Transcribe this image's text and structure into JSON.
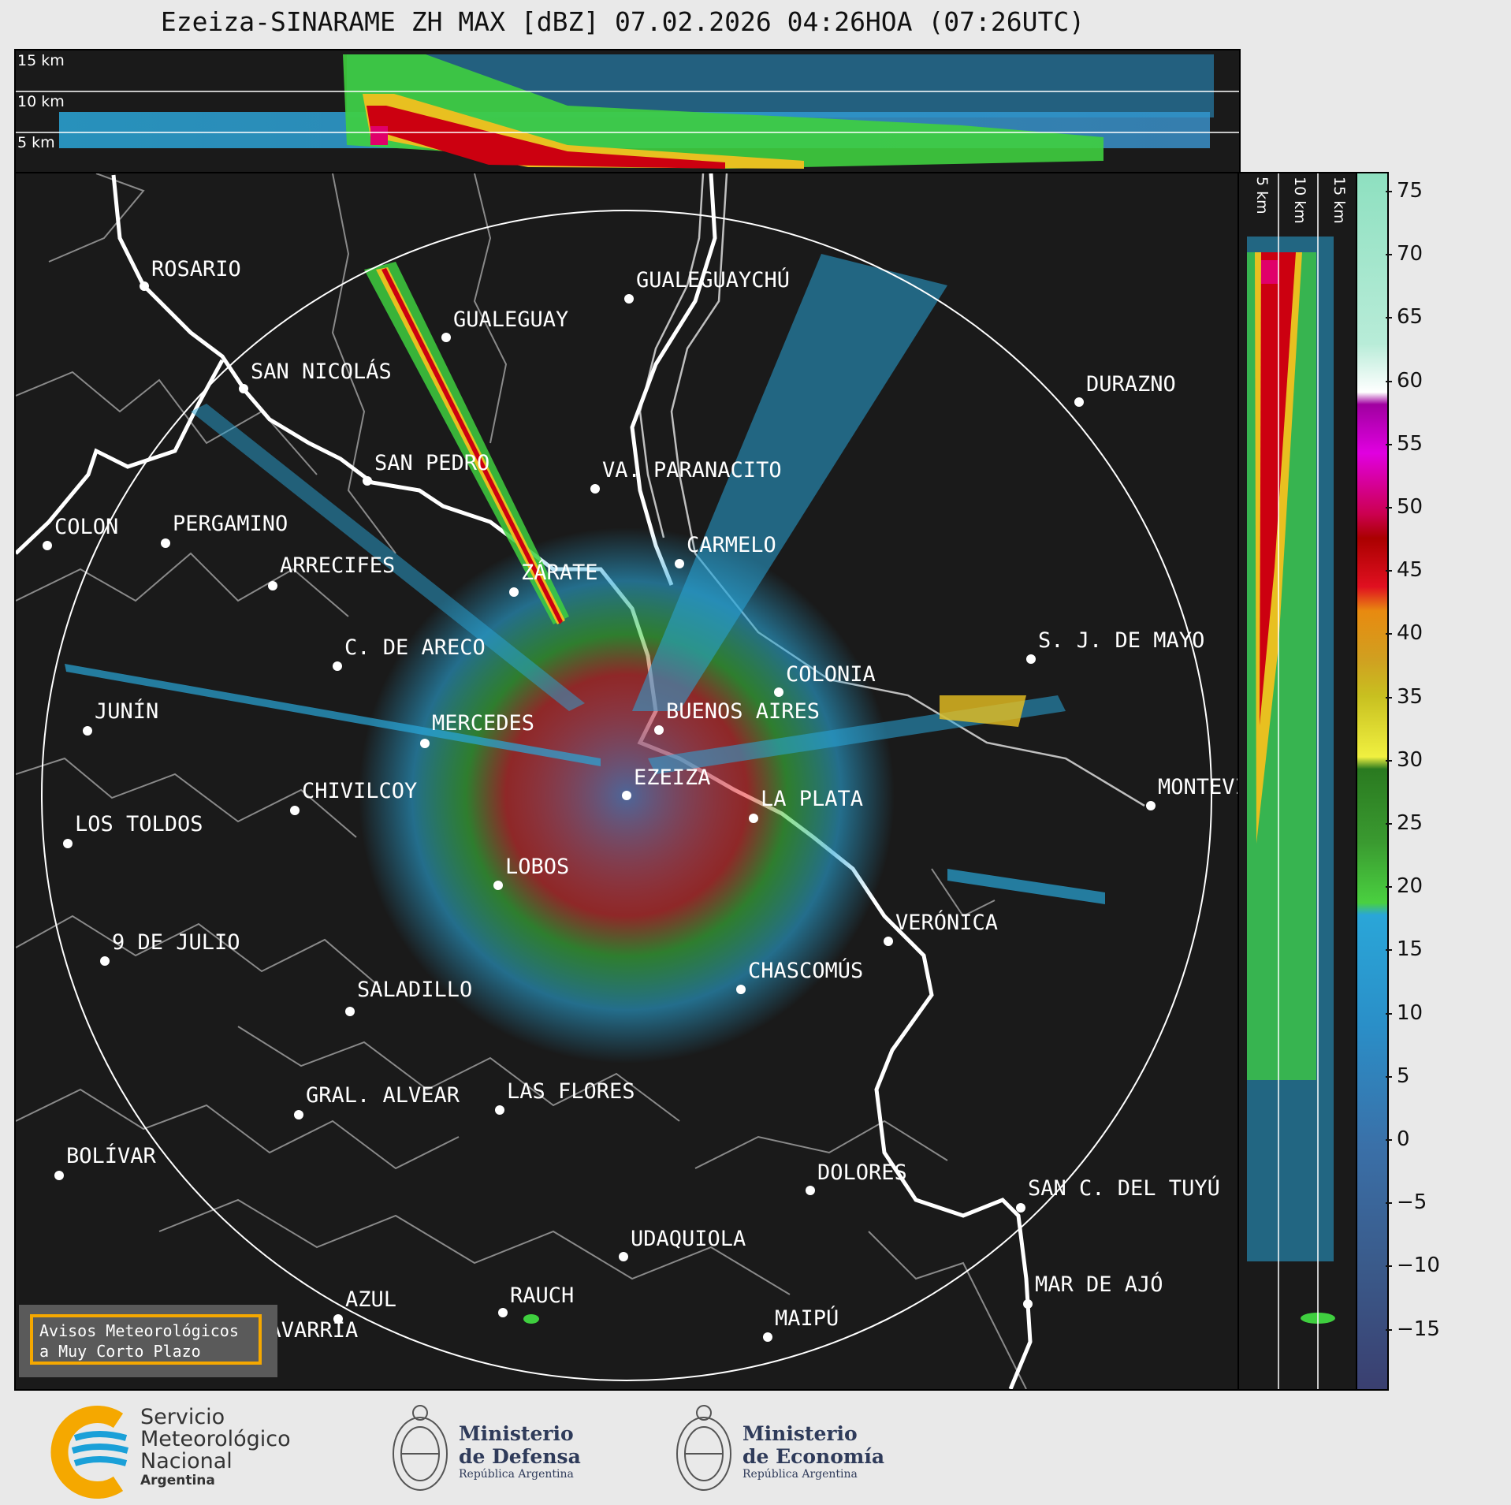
{
  "title": "Ezeiza-SINARAME ZH MAX [dBZ] 07.02.2026 04:26HOA (07:26UTC)",
  "top_altitudes": [
    "15 km",
    "10 km",
    "5 km"
  ],
  "right_altitudes": [
    "5 km",
    "10 km",
    "15 km"
  ],
  "colorbar": {
    "ticks": [
      "75",
      "70",
      "65",
      "60",
      "55",
      "50",
      "45",
      "40",
      "35",
      "30",
      "25",
      "20",
      "15",
      "10",
      "5",
      "0",
      "−5",
      "−10",
      "−15"
    ]
  },
  "cities": [
    {
      "name": "ROSARIO",
      "dot": [
        181,
        361
      ],
      "label": [
        190,
        342
      ]
    },
    {
      "name": "GUALEGUAYCHÚ",
      "dot": [
        796,
        377
      ],
      "label": [
        805,
        356
      ]
    },
    {
      "name": "GUALEGUAY",
      "dot": [
        564,
        426
      ],
      "label": [
        573,
        406
      ]
    },
    {
      "name": "SAN NICOLÁS",
      "dot": [
        307,
        491
      ],
      "label": [
        316,
        472
      ]
    },
    {
      "name": "DURAZNO",
      "dot": [
        1367,
        508
      ],
      "label": [
        1376,
        488
      ]
    },
    {
      "name": "SAN PEDRO",
      "dot": [
        464,
        608
      ],
      "label": [
        473,
        588
      ]
    },
    {
      "name": "VA. PARANACITO",
      "dot": [
        753,
        618
      ],
      "label": [
        762,
        597
      ]
    },
    {
      "name": "COLON",
      "dot": [
        58,
        690
      ],
      "label": [
        67,
        669
      ]
    },
    {
      "name": "PERGAMINO",
      "dot": [
        208,
        687
      ],
      "label": [
        217,
        665
      ]
    },
    {
      "name": "CARMELO",
      "dot": [
        860,
        713
      ],
      "label": [
        869,
        692
      ]
    },
    {
      "name": "ARRECIFES",
      "dot": [
        344,
        741
      ],
      "label": [
        353,
        718
      ]
    },
    {
      "name": "ZÁRATE",
      "dot": [
        650,
        749
      ],
      "label": [
        659,
        727
      ]
    },
    {
      "name": "S. J. DE MAYO",
      "dot": [
        1306,
        834
      ],
      "label": [
        1315,
        813
      ]
    },
    {
      "name": "C. DE ARECO",
      "dot": [
        426,
        843
      ],
      "label": [
        435,
        822
      ]
    },
    {
      "name": "COLONIA",
      "dot": [
        986,
        876
      ],
      "label": [
        995,
        856
      ]
    },
    {
      "name": "BUENOS AIRES",
      "dot": [
        834,
        924
      ],
      "label": [
        843,
        903
      ]
    },
    {
      "name": "JUNÍN",
      "dot": [
        109,
        925
      ],
      "label": [
        118,
        903
      ]
    },
    {
      "name": "MERCEDES",
      "dot": [
        537,
        941
      ],
      "label": [
        546,
        918
      ]
    },
    {
      "name": "EZEIZA",
      "dot": [
        793,
        1007
      ],
      "label": [
        802,
        987
      ]
    },
    {
      "name": "CHIVILCOY",
      "dot": [
        372,
        1026
      ],
      "label": [
        381,
        1004
      ]
    },
    {
      "name": "LA PLATA",
      "dot": [
        954,
        1036
      ],
      "label": [
        963,
        1014
      ]
    },
    {
      "name": "MONTEVIDEO",
      "dot": [
        1458,
        1020
      ],
      "label": [
        1467,
        999
      ]
    },
    {
      "name": "LOS TOLDOS",
      "dot": [
        84,
        1068
      ],
      "label": [
        93,
        1046
      ]
    },
    {
      "name": "LOBOS",
      "dot": [
        630,
        1121
      ],
      "label": [
        639,
        1100
      ]
    },
    {
      "name": "VERÓNICA",
      "dot": [
        1125,
        1192
      ],
      "label": [
        1134,
        1171
      ]
    },
    {
      "name": "9 DE JULIO",
      "dot": [
        131,
        1217
      ],
      "label": [
        140,
        1196
      ]
    },
    {
      "name": "CHASCOMÚS",
      "dot": [
        938,
        1253
      ],
      "label": [
        947,
        1232
      ]
    },
    {
      "name": "SALADILLO",
      "dot": [
        442,
        1281
      ],
      "label": [
        451,
        1256
      ]
    },
    {
      "name": "GRAL. ALVEAR",
      "dot": [
        377,
        1412
      ],
      "label": [
        386,
        1390
      ]
    },
    {
      "name": "LAS FLORES",
      "dot": [
        632,
        1406
      ],
      "label": [
        641,
        1385
      ]
    },
    {
      "name": "BOLÍVAR",
      "dot": [
        73,
        1489
      ],
      "label": [
        82,
        1467
      ]
    },
    {
      "name": "DOLORES",
      "dot": [
        1026,
        1508
      ],
      "label": [
        1035,
        1488
      ]
    },
    {
      "name": "SAN C. DEL TUYÚ",
      "dot": [
        1293,
        1530
      ],
      "label": [
        1302,
        1508
      ]
    },
    {
      "name": "UDAQUIOLA",
      "dot": [
        789,
        1592
      ],
      "label": [
        798,
        1572
      ]
    },
    {
      "name": "MAR DE AJÓ",
      "dot": [
        1302,
        1652
      ],
      "label": [
        1311,
        1630
      ]
    },
    {
      "name": "AZUL",
      "dot": [
        427,
        1671
      ],
      "label": [
        436,
        1649
      ]
    },
    {
      "name": "RAUCH",
      "dot": [
        636,
        1663
      ],
      "label": [
        645,
        1644
      ]
    },
    {
      "name": "MAIPÚ",
      "dot": [
        972,
        1694
      ],
      "label": [
        981,
        1673
      ]
    },
    {
      "name": "OLAVARRÍA",
      "dot": [
        297,
        1710
      ],
      "label": [
        306,
        1688
      ]
    }
  ],
  "avisos": {
    "line1": "Avisos Meteorológicos",
    "line2": "a Muy Corto Plazo"
  },
  "logos": {
    "smn": {
      "line1": "Servicio",
      "line2": "Meteorológico",
      "line3": "Nacional",
      "line4": "Argentina"
    },
    "defensa": {
      "line1": "Ministerio",
      "line2": "de Defensa",
      "line3": "República Argentina"
    },
    "economia": {
      "line1": "Ministerio",
      "line2": "de Economía",
      "line3": "República Argentina"
    }
  },
  "colors": {
    "panel_bg": "#1a1a1a",
    "coast": "#ffffff",
    "borders": "#888888",
    "accent": "#f5a800",
    "smn_blue": "#1aa0d8"
  }
}
